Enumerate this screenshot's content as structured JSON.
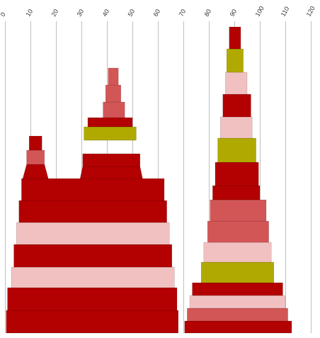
{
  "chart_data": {
    "type": "area",
    "subtype": "stacked-silhouette (chess-piece shaped stacked bands)",
    "x_axis": {
      "position": "top",
      "ticks": [
        0,
        10,
        20,
        30,
        40,
        50,
        60,
        70,
        80,
        90,
        100,
        110,
        120
      ],
      "xlim": [
        0,
        120
      ],
      "tick_rotation": -60
    },
    "grid": true,
    "legend": "none",
    "colors": {
      "dark_red": "#b30000",
      "salmon": "#d35656",
      "pink": "#f1c1c1",
      "olive": "#b0aa00"
    },
    "series": [
      {
        "bands": [
          {
            "x_left": 0.5,
            "x_right": 68.0,
            "color": "dark_red"
          },
          {
            "x_left": 1.0,
            "x_right": 67.5,
            "color": "dark_red"
          },
          {
            "x_left": 2.5,
            "x_right": 66.5,
            "color": "pink"
          },
          {
            "x_left": 3.5,
            "x_right": 65.5,
            "color": "dark_red"
          },
          {
            "x_left": 4.5,
            "x_right": 64.5,
            "color": "pink"
          },
          {
            "x_left": 5.5,
            "x_right": 63.5,
            "color": "dark_red"
          },
          {
            "x_left": 6.5,
            "x_right": 62.5,
            "color": "dark_red"
          },
          {
            "x_left": 7.0,
            "x_right": 17.0,
            "color": "dark_red",
            "upper_x_left": 8.5,
            "upper_x_right": 15.5,
            "taper_to": {
              "x_left": 29.5,
              "x_right": 54.0
            }
          },
          {
            "x_left": 29.5,
            "x_right": 54.0,
            "color": "dark_red",
            "upper_x_left": 30.5,
            "upper_x_right": 53.0
          },
          {
            "x_left": 8.5,
            "x_right": 15.5,
            "color": "salmon"
          },
          {
            "x_left": 30.5,
            "x_right": 53.0,
            "color": "dark_red"
          },
          {
            "x_left": 9.5,
            "x_right": 14.5,
            "color": "dark_red"
          },
          {
            "x_left": 31.0,
            "x_right": 51.5,
            "color": "olive"
          },
          {
            "x_left": 32.5,
            "x_right": 50.0,
            "color": "dark_red"
          },
          {
            "x_left": 38.5,
            "x_right": 47.0,
            "color": "salmon"
          },
          {
            "x_left": 39.5,
            "x_right": 45.5,
            "color": "salmon"
          },
          {
            "x_left": 40.5,
            "x_right": 44.5,
            "color": "salmon"
          }
        ]
      },
      {
        "bands": [
          {
            "x_left": 70.5,
            "x_right": 112.5,
            "color": "dark_red"
          },
          {
            "x_left": 71.5,
            "x_right": 111.0,
            "color": "salmon"
          },
          {
            "x_left": 72.5,
            "x_right": 110.0,
            "color": "pink"
          },
          {
            "x_left": 73.5,
            "x_right": 109.0,
            "color": "dark_red"
          },
          {
            "x_left": 77.0,
            "x_right": 105.5,
            "color": "olive"
          },
          {
            "x_left": 78.0,
            "x_right": 104.5,
            "color": "pink"
          },
          {
            "x_left": 79.5,
            "x_right": 103.5,
            "color": "salmon"
          },
          {
            "x_left": 80.5,
            "x_right": 102.5,
            "color": "salmon"
          },
          {
            "x_left": 81.5,
            "x_right": 100.0,
            "color": "dark_red"
          },
          {
            "x_left": 82.5,
            "x_right": 99.5,
            "color": "dark_red"
          },
          {
            "x_left": 83.5,
            "x_right": 98.5,
            "color": "olive"
          },
          {
            "x_left": 84.5,
            "x_right": 97.0,
            "color": "pink"
          },
          {
            "x_left": 85.5,
            "x_right": 96.5,
            "color": "dark_red"
          },
          {
            "x_left": 86.5,
            "x_right": 95.0,
            "color": "pink"
          },
          {
            "x_left": 87.0,
            "x_right": 93.5,
            "color": "olive"
          },
          {
            "x_left": 88.0,
            "x_right": 92.5,
            "color": "dark_red"
          }
        ]
      }
    ]
  }
}
